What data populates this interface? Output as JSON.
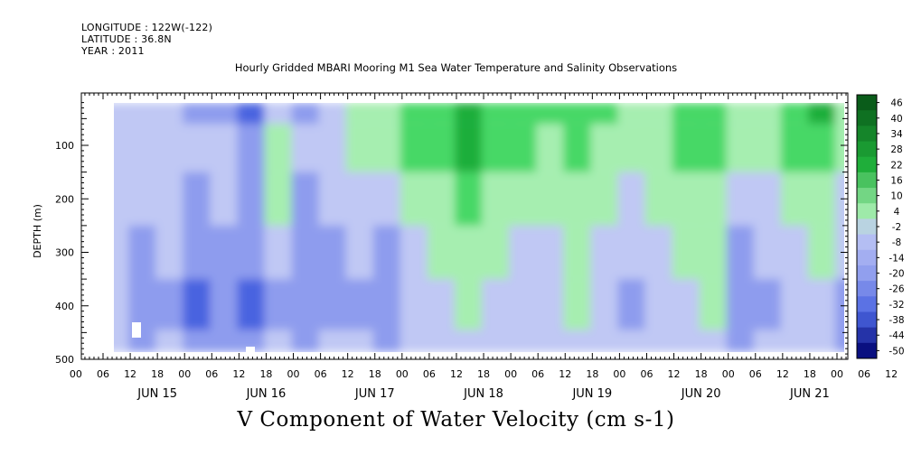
{
  "header": {
    "longitude": "LONGITUDE : 122W(-122)",
    "latitude": "LATITUDE : 36.8N",
    "year": "YEAR : 2011"
  },
  "title": "Hourly Gridded MBARI Mooring M1 Sea Water Temperature and Salinity Observations",
  "bottom_title": "V Component of Water Velocity (cm s-1)",
  "colors": {
    "negative_light": "#c0c8f4",
    "negative_mid": "#8e9cee",
    "negative_strong": "#4a64e0",
    "positive_light": "#a6eeb0",
    "positive_mid": "#46d866",
    "positive_strong": "#1fae3a",
    "missing": "#ffffff"
  },
  "chart_data": {
    "type": "heatmap",
    "variable": "V Component of Water Velocity (cm s-1)",
    "ylabel": "DEPTH (m)",
    "y_reversed": true,
    "ylim": [
      500,
      0
    ],
    "yticks": [
      100,
      200,
      300,
      400,
      500
    ],
    "xlim_hours": [
      0,
      168
    ],
    "x_hour_labels": [
      "00",
      "06",
      "12",
      "18",
      "00",
      "06",
      "12",
      "18",
      "00",
      "06",
      "12",
      "18",
      "00",
      "06",
      "12",
      "18",
      "00",
      "06",
      "12",
      "18",
      "00",
      "06",
      "12",
      "18",
      "00",
      "06",
      "12",
      "18",
      "00",
      "06",
      "12",
      "18",
      "00",
      "06",
      "12",
      "18",
      "00",
      "06",
      "12",
      "18",
      "00",
      "06",
      "12",
      "18",
      "00",
      "06",
      "12",
      "18"
    ],
    "x_day_labels": [
      "JUN 15",
      "JUN 16",
      "JUN 17",
      "JUN 18",
      "JUN 19",
      "JUN 20",
      "JUN 21"
    ],
    "colorbar_labels": [
      "46",
      "40",
      "34",
      "28",
      "22",
      "16",
      "10",
      "4",
      "-2",
      "-8",
      "-14",
      "-20",
      "-26",
      "-32",
      "-38",
      "-44",
      "-50"
    ],
    "colorbar_range": [
      -50,
      52
    ],
    "columns": [
      {
        "x": "JUN 14 22:00",
        "v": [
          -4,
          -3,
          -2,
          -3,
          -4,
          -5
        ]
      },
      {
        "x": "JUN 15 06:00",
        "v": [
          -6,
          -4,
          -6,
          -10,
          -12,
          -10
        ]
      },
      {
        "x": "JUN 15 12:00",
        "v": [
          -4,
          0,
          -2,
          -6,
          -8,
          -6
        ]
      },
      {
        "x": "JUN 15 18:00",
        "v": [
          -8,
          -6,
          -8,
          -12,
          -14,
          -10
        ]
      },
      {
        "x": "JUN 16 00:00",
        "v": [
          -8,
          -2,
          -6,
          -10,
          -12,
          -8
        ]
      },
      {
        "x": "JUN 16 06:00",
        "v": [
          -14,
          -8,
          -8,
          -12,
          -16,
          -12
        ]
      },
      {
        "x": "JUN 16 12:00",
        "v": [
          -6,
          2,
          2,
          -4,
          -8,
          -6
        ]
      },
      {
        "x": "JUN 16 18:00",
        "v": [
          -10,
          -6,
          -8,
          -10,
          -12,
          -8
        ]
      },
      {
        "x": "JUN 17 00:00",
        "v": [
          -6,
          -2,
          -4,
          -8,
          -10,
          -6
        ]
      },
      {
        "x": "JUN 17 06:00",
        "v": [
          6,
          4,
          -2,
          -6,
          -8,
          -6
        ]
      },
      {
        "x": "JUN 17 12:00",
        "v": [
          10,
          8,
          -2,
          -8,
          -10,
          -8
        ]
      },
      {
        "x": "JUN 17 18:00",
        "v": [
          16,
          14,
          4,
          -4,
          -6,
          -4
        ]
      },
      {
        "x": "JUN 18 00:00",
        "v": [
          22,
          18,
          8,
          2,
          -2,
          -2
        ]
      },
      {
        "x": "JUN 18 06:00",
        "v": [
          30,
          26,
          14,
          6,
          2,
          0
        ]
      },
      {
        "x": "JUN 18 12:00",
        "v": [
          24,
          22,
          10,
          4,
          0,
          -2
        ]
      },
      {
        "x": "JUN 18 18:00",
        "v": [
          18,
          16,
          8,
          -2,
          -6,
          -4
        ]
      },
      {
        "x": "JUN 19 00:00",
        "v": [
          12,
          10,
          4,
          0,
          -2,
          0
        ]
      },
      {
        "x": "JUN 19 06:00",
        "v": [
          20,
          16,
          8,
          4,
          2,
          0
        ]
      },
      {
        "x": "JUN 19 12:00",
        "v": [
          14,
          10,
          4,
          -2,
          -4,
          -2
        ]
      },
      {
        "x": "JUN 19 18:00",
        "v": [
          6,
          4,
          -2,
          -6,
          -8,
          -6
        ]
      },
      {
        "x": "JUN 20 00:00",
        "v": [
          10,
          6,
          2,
          -2,
          -4,
          -2
        ]
      },
      {
        "x": "JUN 20 06:00",
        "v": [
          18,
          14,
          6,
          2,
          0,
          0
        ]
      },
      {
        "x": "JUN 20 12:00",
        "v": [
          22,
          18,
          8,
          4,
          2,
          0
        ]
      },
      {
        "x": "JUN 20 18:00",
        "v": [
          8,
          4,
          -4,
          -8,
          -10,
          -8
        ]
      },
      {
        "x": "JUN 21 00:00",
        "v": [
          4,
          2,
          -4,
          -6,
          -8,
          -6
        ]
      },
      {
        "x": "JUN 21 06:00",
        "v": [
          14,
          12,
          6,
          0,
          -4,
          -2
        ]
      },
      {
        "x": "JUN 21 12:00",
        "v": [
          26,
          22,
          10,
          4,
          -2,
          -4
        ]
      },
      {
        "x": "JUN 21 18:00",
        "v": [
          6,
          4,
          -2,
          -6,
          -8,
          -8
        ]
      }
    ],
    "depth_levels": [
      20,
      100,
      200,
      300,
      400,
      490
    ]
  }
}
